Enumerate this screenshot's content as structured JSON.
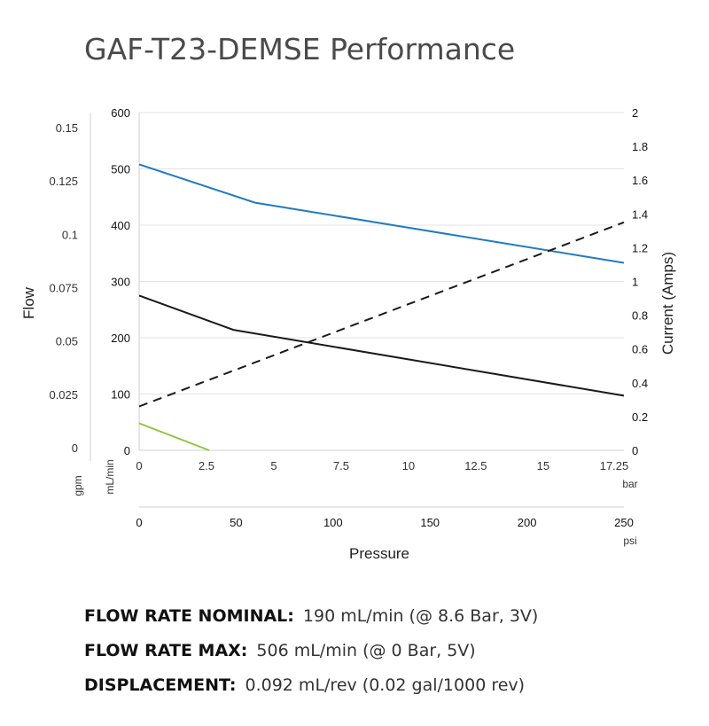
{
  "title": "GAF-T23-DEMSE Performance",
  "chart_data": {
    "type": "line",
    "title": "GAF-T23-DEMSE Performance",
    "xlabel": "Pressure",
    "x_bar_unit": "bar",
    "x_psi_unit": "psi",
    "x_bar_ticks": [
      "0",
      "2.5",
      "5",
      "7.5",
      "10",
      "12.5",
      "15",
      "17.25"
    ],
    "x_psi_ticks": [
      "0",
      "50",
      "100",
      "150",
      "200",
      "250"
    ],
    "xlim_bar": [
      0,
      18
    ],
    "ylabel_left": "Flow",
    "y_gpm_unit": "gpm",
    "y_ml_unit": "mL/min",
    "y_gpm_ticks": [
      "0",
      "0.025",
      "0.05",
      "0.075",
      "0.1",
      "0.125",
      "0.15"
    ],
    "y_ml_ticks": [
      "0",
      "100",
      "200",
      "300",
      "400",
      "500",
      "600"
    ],
    "ylim_ml": [
      0,
      600
    ],
    "ylabel_right": "Current (Amps)",
    "y_current_ticks": [
      "0",
      "0.2",
      "0.4",
      "0.6",
      "0.8",
      "1",
      "1.2",
      "1.4",
      "1.6",
      "1.8",
      "2"
    ],
    "ylim_current": [
      0,
      2
    ],
    "grid": true,
    "series": [
      {
        "color": "#1f7bc1",
        "axis": "flow",
        "dash": false,
        "x": [
          0,
          4.3,
          18
        ],
        "y": [
          508,
          440,
          333
        ]
      },
      {
        "color": "#1a1a1a",
        "axis": "flow",
        "dash": false,
        "x": [
          0,
          3.5,
          18
        ],
        "y": [
          275,
          214,
          97
        ]
      },
      {
        "color": "#1a1a1a",
        "axis": "current",
        "dash": true,
        "x": [
          0,
          18
        ],
        "y": [
          0.26,
          1.35
        ]
      },
      {
        "color": "#8dc63f",
        "axis": "flow",
        "dash": false,
        "x": [
          0,
          2.6
        ],
        "y": [
          48,
          0
        ]
      }
    ]
  },
  "specs": [
    {
      "label": "FLOW RATE NOMINAL:",
      "value": "190 mL/min (@ 8.6 Bar, 3V)"
    },
    {
      "label": "FLOW RATE MAX:",
      "value": "506 mL/min (@ 0 Bar, 5V)"
    },
    {
      "label": "DISPLACEMENT:",
      "value": "0.092 mL/rev (0.02 gal/1000 rev)"
    }
  ]
}
